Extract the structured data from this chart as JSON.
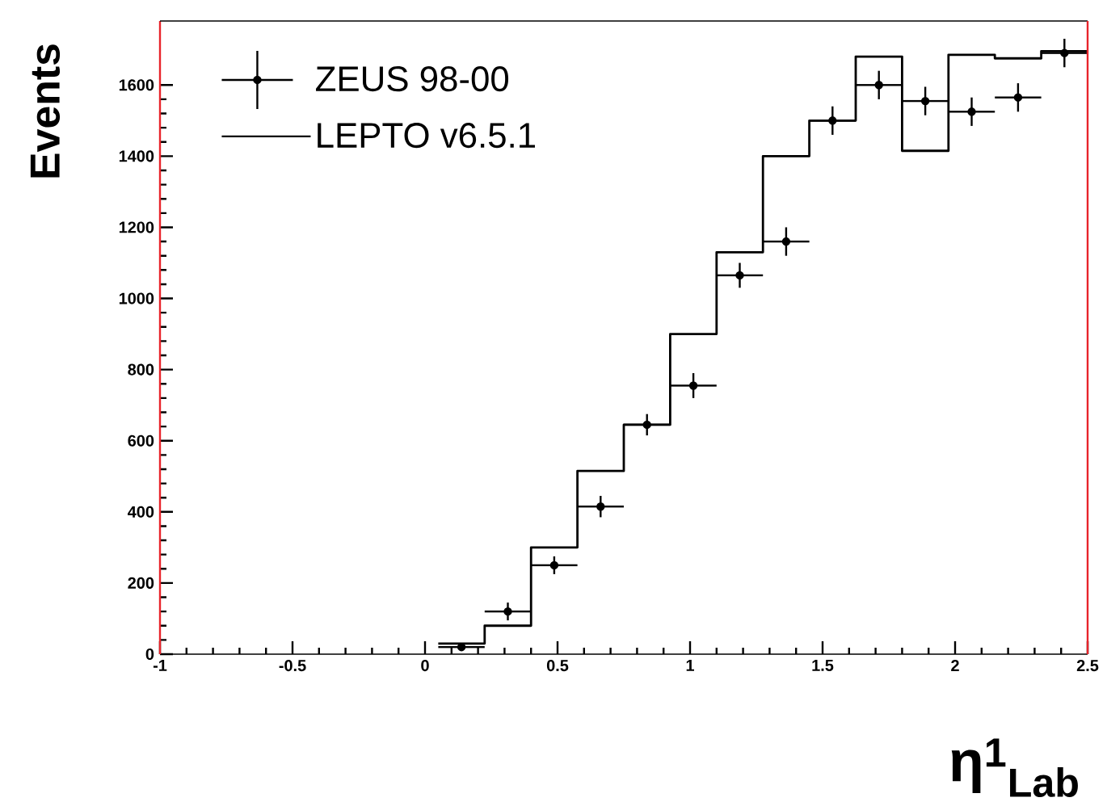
{
  "chart_data": {
    "type": "histogram",
    "xlabel": "η$^{1}$$_{Lab}$",
    "ylabel": "Events",
    "bins": [
      0.05,
      0.225,
      0.4,
      0.575,
      0.75,
      0.925,
      1.1,
      1.275,
      1.45,
      1.625,
      1.8,
      1.975,
      2.15,
      2.325,
      2.5
    ],
    "series": [
      {
        "name": "ZEUS 98-00",
        "type": "scatter",
        "color": "#000000",
        "marker": "circle",
        "x": [
          0.1375,
          0.3125,
          0.4875,
          0.6625,
          0.8375,
          1.0125,
          1.1875,
          1.3625,
          1.5375,
          1.7125,
          1.8875,
          2.0625,
          2.2375,
          2.4125
        ],
        "values": [
          20,
          120,
          250,
          415,
          645,
          755,
          1065,
          1160,
          1500,
          1600,
          1555,
          1525,
          1565,
          1690
        ],
        "errors": [
          10,
          25,
          25,
          30,
          30,
          35,
          35,
          40,
          40,
          40,
          40,
          40,
          40,
          40
        ],
        "xerrors": [
          0.0875,
          0.0875,
          0.0875,
          0.0875,
          0.0875,
          0.0875,
          0.0875,
          0.0875,
          0.0875,
          0.0875,
          0.0875,
          0.0875,
          0.0875,
          0.0875
        ]
      },
      {
        "name": "LEPTO v6.5.1",
        "color": "#000000",
        "values": [
          30,
          80,
          300,
          515,
          645,
          900,
          1130,
          1400,
          1500,
          1680,
          1415,
          1685,
          1675,
          1695
        ]
      }
    ],
    "xlim": [
      -1,
      2.5
    ],
    "ylim": [
      0,
      1780
    ],
    "xticks": [
      -1,
      -0.5,
      0,
      0.5,
      1,
      1.5,
      2,
      2.5
    ],
    "yticks": [
      0,
      200,
      400,
      600,
      800,
      1000,
      1200,
      1400,
      1600
    ],
    "legend": "top left",
    "grid": false
  }
}
